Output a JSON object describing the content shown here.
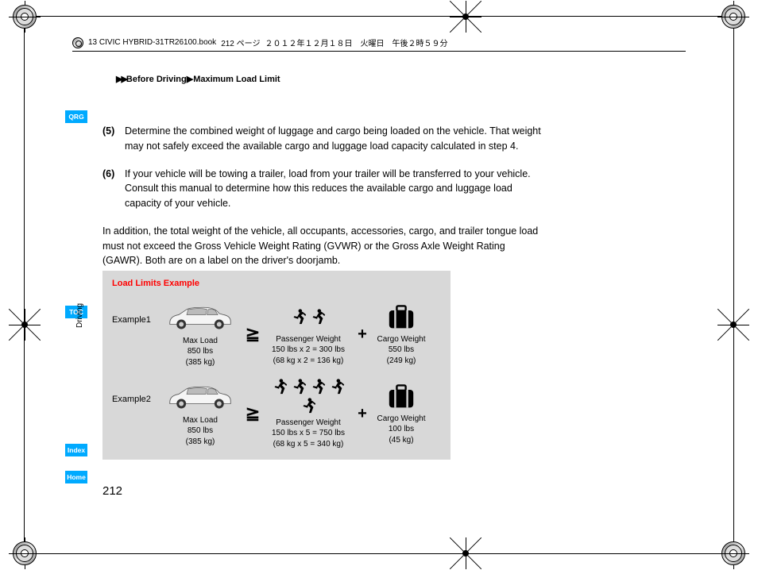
{
  "header": {
    "bookname": "13 CIVIC HYBRID-31TR26100.book",
    "pageinfo": "212 ページ",
    "date": "２０１２年１２月１８日　火曜日　午後２時５９分"
  },
  "breadcrumb": {
    "arrow": "▶▶",
    "path1": "Before Driving",
    "sep": "▶",
    "path2": "Maximum Load Limit"
  },
  "tabs": {
    "qrg": "QRG",
    "toc": "TOC",
    "index": "Index",
    "home": "Home"
  },
  "side_label": "Driving",
  "content": {
    "item5_num": "(5)",
    "item5_text": "Determine the combined weight of luggage and cargo being loaded on the vehicle. That weight may not safely exceed the available cargo and luggage load capacity calculated in step 4.",
    "item6_num": "(6)",
    "item6_text": "If your vehicle will be towing a trailer, load from your trailer will be transferred to your vehicle. Consult this manual to determine how this reduces the available cargo and luggage load capacity of your vehicle.",
    "addition": "In addition, the total weight of the vehicle, all occupants, accessories, cargo, and trailer tongue load must not exceed the Gross Vehicle Weight Rating (GVWR) or the Gross Axle Weight Rating (GAWR). Both are on a label on the driver's doorjamb."
  },
  "example": {
    "title": "Load Limits Example",
    "ex1": {
      "label": "Example1",
      "passengers": 2,
      "max_l1": "Max Load",
      "max_l2": "850 lbs",
      "max_l3": "(385 kg)",
      "pw_l1": "Passenger Weight",
      "pw_l2": "150 lbs x 2 = 300 lbs",
      "pw_l3": "(68 kg x 2 = 136 kg)",
      "cw_l1": "Cargo Weight",
      "cw_l2": "550 lbs",
      "cw_l3": "(249 kg)"
    },
    "ex2": {
      "label": "Example2",
      "passengers": 5,
      "max_l1": "Max Load",
      "max_l2": "850 lbs",
      "max_l3": "(385 kg)",
      "pw_l1": "Passenger Weight",
      "pw_l2": "150 lbs x 5 = 750 lbs",
      "pw_l3": "(68 kg x 5 = 340 kg)",
      "cw_l1": "Cargo Weight",
      "cw_l2": "100 lbs",
      "cw_l3": "(45 kg)"
    },
    "gte": "≧",
    "plus": "+"
  },
  "page_number": "212"
}
